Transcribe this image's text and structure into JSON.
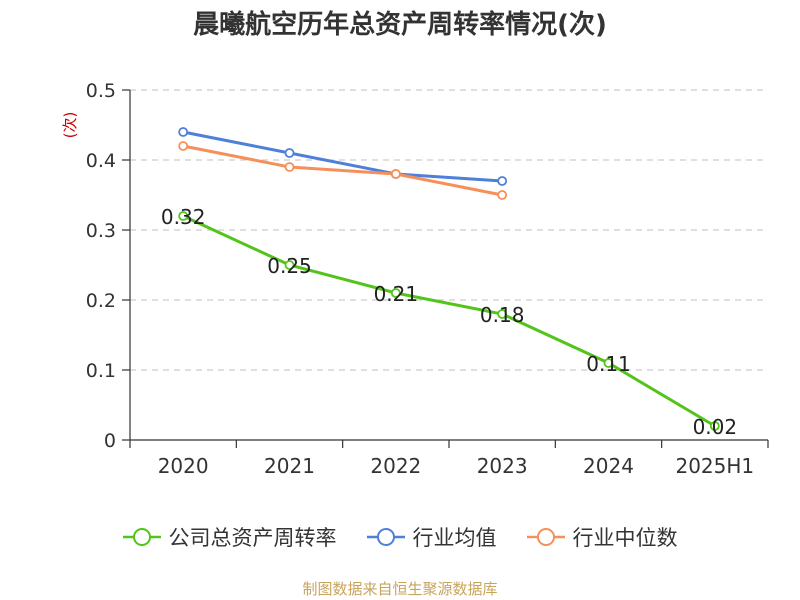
{
  "chart_data": {
    "type": "line",
    "title": "晨曦航空历年总资产周转率情况(次)",
    "ylabel": "(次)",
    "xlabel": "",
    "categories": [
      "2020",
      "2021",
      "2022",
      "2023",
      "2024",
      "2025H1"
    ],
    "ylim": [
      0,
      0.5
    ],
    "yticks": [
      0,
      0.1,
      0.2,
      0.3,
      0.4,
      0.5
    ],
    "ytick_labels": [
      "0",
      "0.1",
      "0.2",
      "0.3",
      "0.4",
      "0.5"
    ],
    "grid": true,
    "legend_position": "bottom",
    "series": [
      {
        "name": "公司总资产周转率",
        "color": "#52c41a",
        "values": [
          0.32,
          0.25,
          0.21,
          0.18,
          0.11,
          0.02
        ],
        "data_labels": [
          "0.32",
          "0.25",
          "0.21",
          "0.18",
          "0.11",
          "0.02"
        ]
      },
      {
        "name": "行业均值",
        "color": "#4e7fd9",
        "values": [
          0.44,
          0.41,
          0.38,
          0.37,
          null,
          null
        ]
      },
      {
        "name": "行业中位数",
        "color": "#f6905a",
        "values": [
          0.42,
          0.39,
          0.38,
          0.35,
          null,
          null
        ]
      }
    ]
  },
  "source": "制图数据来自恒生聚源数据库"
}
